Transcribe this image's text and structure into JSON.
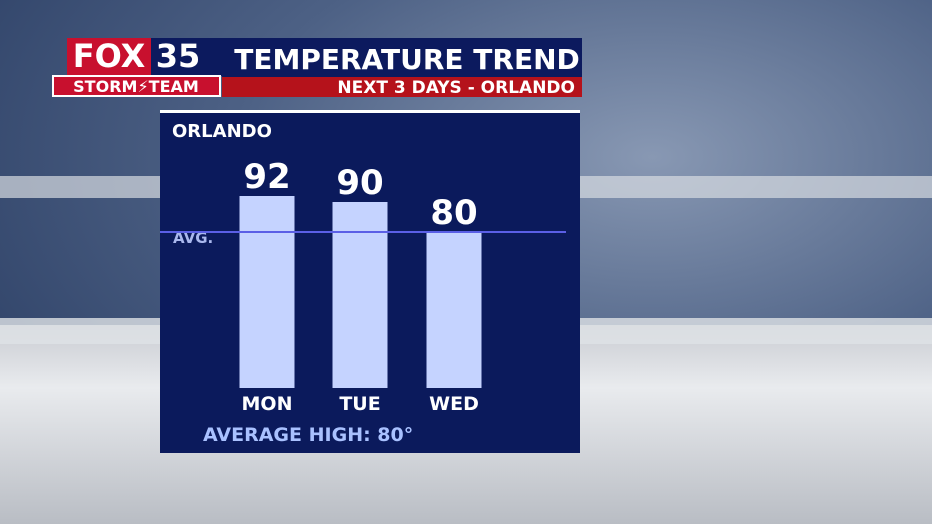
{
  "brand": {
    "name": "FOX",
    "number": "35",
    "team": "STORM⚡TEAM"
  },
  "chart_data": {
    "type": "bar",
    "title": "TEMPERATURE TREND",
    "subtitle": "NEXT 3 DAYS - ORLANDO",
    "location": "ORLANDO",
    "categories": [
      "MON",
      "TUE",
      "WED"
    ],
    "values": [
      92,
      90,
      80
    ],
    "color": "#c5d3ff",
    "ylim": [
      28,
      114
    ],
    "average": 80,
    "average_name": "AVG.",
    "average_label": "AVERAGE HIGH: 80°"
  }
}
